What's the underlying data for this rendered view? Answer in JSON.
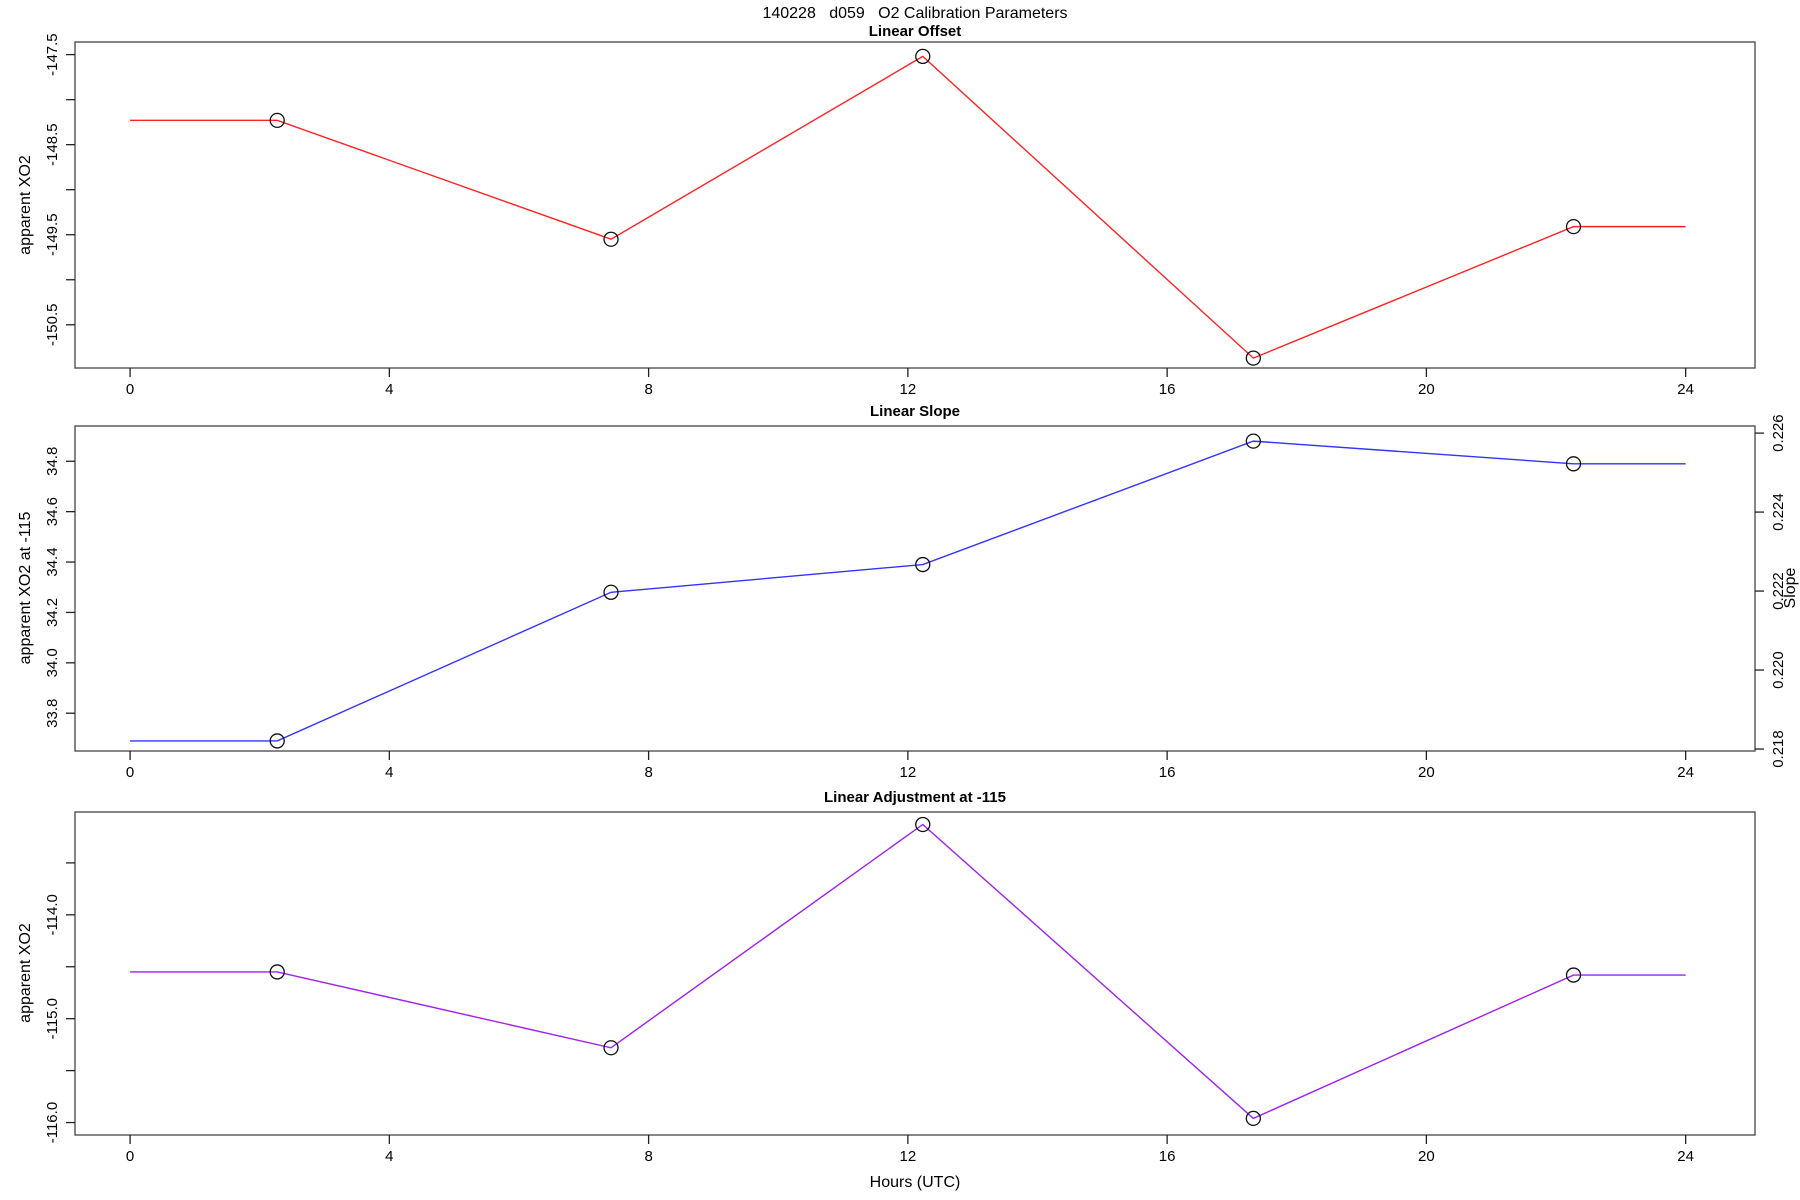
{
  "page": {
    "main_title": "140228   d059   O2 Calibration Parameters",
    "x_axis_label": "Hours (UTC)"
  },
  "chart_data": [
    {
      "type": "line",
      "title": "Linear Offset",
      "ylabel": "apparent XO2",
      "color": "#ff2222",
      "marker": "open-circle",
      "x": [
        0,
        2.27,
        7.42,
        12.23,
        17.33,
        22.27,
        24
      ],
      "y": [
        -148.23,
        -148.23,
        -149.55,
        -147.52,
        -150.87,
        -149.41,
        -149.41
      ],
      "marker_indices": [
        1,
        2,
        3,
        4,
        5
      ],
      "xlim": [
        0,
        24
      ],
      "xticks": [
        0,
        4,
        8,
        12,
        16,
        20,
        24
      ],
      "ylim": [
        -150.98,
        -147.36
      ],
      "yticks": [
        -147.5,
        -148,
        -148.5,
        -149,
        -149.5,
        -150,
        -150.5
      ],
      "ytick_labels": [
        "-147.5",
        "",
        "-148.5",
        "",
        "-149.5",
        "",
        "-150.5"
      ]
    },
    {
      "type": "line",
      "title": "Linear Slope",
      "ylabel": "apparent XO2 at -115",
      "ylabel_right": "Slope",
      "color": "#3333ff",
      "marker": "open-circle",
      "x": [
        0,
        2.27,
        7.42,
        12.23,
        17.33,
        22.27,
        24
      ],
      "y": [
        33.69,
        33.69,
        34.28,
        34.39,
        34.88,
        34.79,
        34.79
      ],
      "y_right_equivalent": [
        0.2182,
        0.2182,
        0.222,
        0.2227,
        0.2258,
        0.2253,
        0.2253
      ],
      "marker_indices": [
        1,
        2,
        3,
        4,
        5
      ],
      "xlim": [
        0,
        24
      ],
      "xticks": [
        0,
        4,
        8,
        12,
        16,
        20,
        24
      ],
      "ylim": [
        33.65,
        34.94
      ],
      "yticks": [
        33.8,
        34.0,
        34.2,
        34.4,
        34.6,
        34.8
      ],
      "ytick_labels": [
        "33.8",
        "34.0",
        "34.2",
        "34.4",
        "34.6",
        "34.8"
      ],
      "ylim_right": [
        0.21795,
        0.22618
      ],
      "yticks_right": [
        0.218,
        0.22,
        0.222,
        0.224,
        0.226
      ],
      "ytick_right_labels": [
        "0.218",
        "0.220",
        "0.222",
        "0.224",
        "0.226"
      ]
    },
    {
      "type": "line",
      "title": "Linear Adjustment at -115",
      "ylabel": "apparent XO2",
      "color": "#a020f0",
      "marker": "open-circle",
      "x": [
        0,
        2.27,
        7.42,
        12.23,
        17.33,
        22.27,
        24
      ],
      "y": [
        -114.55,
        -114.55,
        -115.28,
        -113.13,
        -115.96,
        -114.58,
        -114.58
      ],
      "marker_indices": [
        1,
        2,
        3,
        4,
        5
      ],
      "xlim": [
        0,
        24
      ],
      "xticks": [
        0,
        4,
        8,
        12,
        16,
        20,
        24
      ],
      "ylim": [
        -116.12,
        -113.01
      ],
      "yticks": [
        -113.5,
        -114,
        -114.5,
        -115,
        -115.5,
        -116
      ],
      "ytick_labels": [
        "",
        "-114.0",
        "",
        "-115.0",
        "",
        "-116.0"
      ]
    }
  ]
}
